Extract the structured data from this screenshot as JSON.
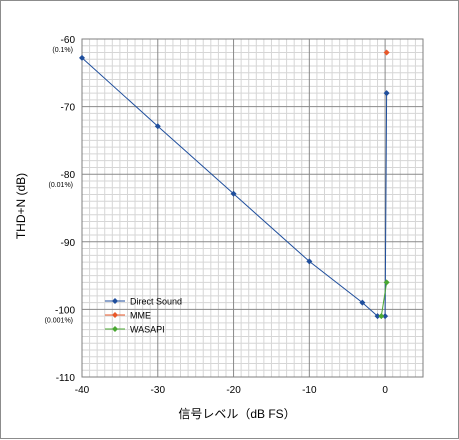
{
  "chart_data": {
    "type": "line",
    "xlabel": "信号レベル（dB FS）",
    "ylabel": "THD+N (dB)",
    "xlim": [
      -40,
      5
    ],
    "ylim": [
      -110,
      -60
    ],
    "x_ticks": [
      "-40",
      "-30",
      "-20",
      "-10",
      "0"
    ],
    "y_ticks": [
      "-60",
      "-70",
      "-80",
      "-90",
      "-100",
      "-110"
    ],
    "y_sub_labels": [
      {
        "at": -60,
        "text": "(0.1%)"
      },
      {
        "at": -80,
        "text": "(0.01%)"
      },
      {
        "at": -100,
        "text": "(0.001%)"
      }
    ],
    "grid": true,
    "legend_position": "lower-left",
    "series": [
      {
        "name": "Direct Sound",
        "color": "#1f4e9c",
        "marker": "diamond",
        "points": [
          [
            -40,
            -62.8
          ],
          [
            -30,
            -72.9
          ],
          [
            -20,
            -82.9
          ],
          [
            -10,
            -92.9
          ],
          [
            -3,
            -99
          ],
          [
            -1,
            -101
          ],
          [
            0,
            -101
          ],
          [
            0.2,
            -68
          ]
        ]
      },
      {
        "name": "MME",
        "color": "#e8582a",
        "marker": "diamond",
        "points": [
          [
            0.2,
            -62
          ]
        ]
      },
      {
        "name": "WASAPI",
        "color": "#4aa832",
        "marker": "diamond",
        "points": [
          [
            -0.5,
            -101
          ],
          [
            0.2,
            -96
          ]
        ]
      }
    ]
  }
}
